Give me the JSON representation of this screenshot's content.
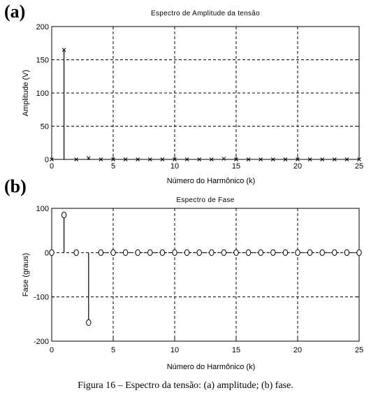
{
  "panels": {
    "a": {
      "label": "(a)"
    },
    "b": {
      "label": "(b)"
    }
  },
  "caption": "Figura 16 – Espectro da tensão: (a) amplitude; (b) fase.",
  "chart_data": [
    {
      "type": "stem",
      "title": "Espectro de Amplitude da tensão",
      "xlabel": "Número do Harmônico (k)",
      "ylabel": "Amplitude (V)",
      "xlim": [
        0,
        25
      ],
      "ylim": [
        0,
        200
      ],
      "xticks": [
        0,
        5,
        10,
        15,
        20,
        25
      ],
      "yticks": [
        0,
        50,
        100,
        150,
        200
      ],
      "grid": true,
      "marker": "x",
      "x": [
        0,
        1,
        2,
        3,
        4,
        5,
        6,
        7,
        8,
        9,
        10,
        11,
        12,
        13,
        14,
        15,
        16,
        17,
        18,
        19,
        20,
        21,
        22,
        23,
        24,
        25
      ],
      "values": [
        0,
        165,
        0,
        2,
        0,
        0,
        0,
        0,
        0,
        0,
        0,
        0,
        0,
        0,
        1,
        0,
        0,
        0,
        0,
        0,
        0,
        0,
        0,
        0,
        0,
        0
      ]
    },
    {
      "type": "stem",
      "title": "Espectro de Fase",
      "xlabel": "Número do Harmônico (k)",
      "ylabel": "Fase (graus)",
      "xlim": [
        0,
        25
      ],
      "ylim": [
        -200,
        100
      ],
      "xticks": [
        0,
        5,
        10,
        15,
        20,
        25
      ],
      "yticks": [
        -200,
        -100,
        0,
        100
      ],
      "grid": true,
      "marker": "o",
      "x": [
        0,
        1,
        2,
        3,
        4,
        5,
        6,
        7,
        8,
        9,
        10,
        11,
        12,
        13,
        14,
        15,
        16,
        17,
        18,
        19,
        20,
        21,
        22,
        23,
        24,
        25
      ],
      "values": [
        0,
        85,
        0,
        -158,
        0,
        0,
        0,
        0,
        0,
        0,
        0,
        0,
        0,
        0,
        0,
        0,
        0,
        0,
        0,
        0,
        0,
        0,
        0,
        0,
        0,
        0
      ]
    }
  ]
}
